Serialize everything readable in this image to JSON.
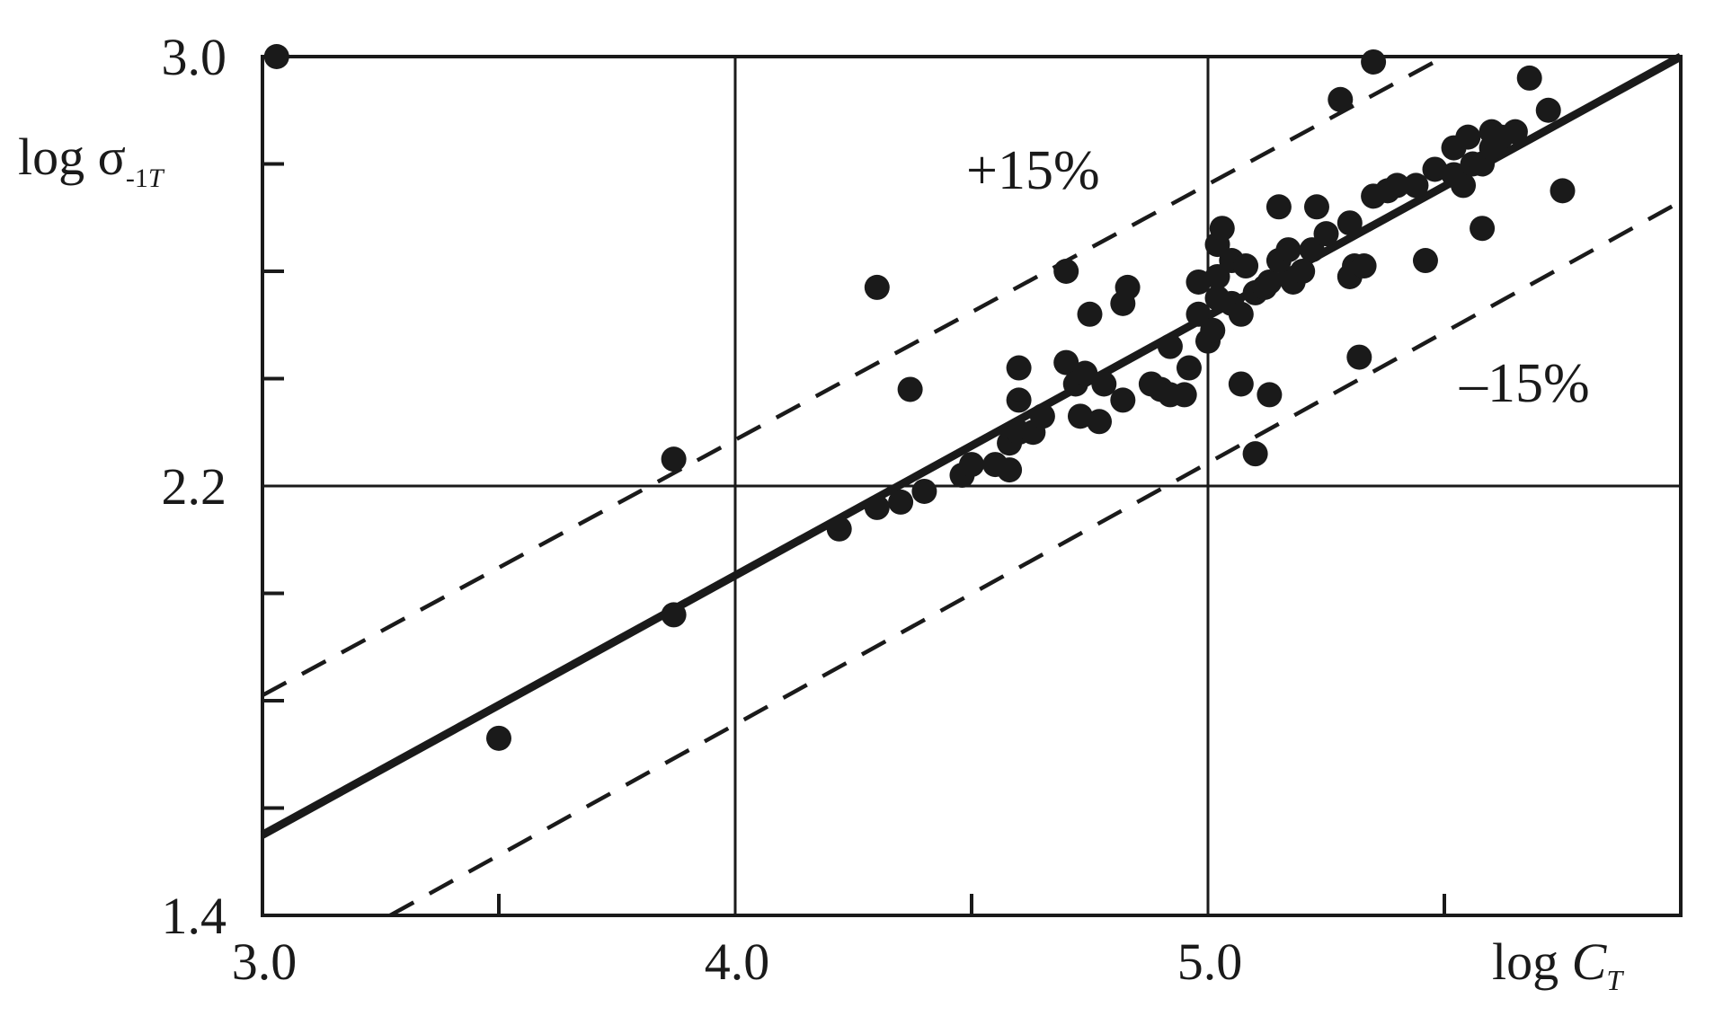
{
  "chart_data": {
    "type": "scatter",
    "title": "",
    "xlabel": {
      "main": "log ",
      "italic": "C",
      "sub": "T"
    },
    "ylabel": {
      "main": "log σ",
      "sub": "-1",
      "sub_italic": "T"
    },
    "xlim": [
      3.0,
      6.0
    ],
    "ylim": [
      1.4,
      3.0
    ],
    "x_tick_labels": [
      {
        "value": 3.0,
        "label": "3.0"
      },
      {
        "value": 4.0,
        "label": "4.0"
      },
      {
        "value": 5.0,
        "label": "5.0"
      }
    ],
    "y_tick_labels": [
      {
        "value": 1.4,
        "label": "1.4"
      },
      {
        "value": 2.2,
        "label": "2.2"
      },
      {
        "value": 3.0,
        "label": "3.0"
      }
    ],
    "x_minor_ticks": [
      3.5,
      4.5,
      5.5
    ],
    "y_minor_ticks": [
      1.6,
      1.8,
      2.0,
      2.4,
      2.6,
      2.8
    ],
    "grid_x": [
      4.0,
      5.0
    ],
    "grid_y": [
      2.2
    ],
    "grid": true,
    "fit_line": {
      "x": [
        3.0,
        6.0
      ],
      "y": [
        1.55,
        3.0
      ]
    },
    "band_upper": {
      "x": [
        3.0,
        5.5
      ],
      "y": [
        1.81,
        3.0
      ],
      "label": "+15%"
    },
    "band_lower": {
      "x": [
        3.27,
        6.0
      ],
      "y": [
        1.4,
        2.73
      ],
      "label": "–15%"
    },
    "points": [
      [
        3.03,
        3.0
      ],
      [
        3.5,
        1.73
      ],
      [
        3.87,
        1.96
      ],
      [
        3.87,
        2.25
      ],
      [
        4.22,
        2.12
      ],
      [
        4.3,
        2.16
      ],
      [
        4.3,
        2.57
      ],
      [
        4.35,
        2.17
      ],
      [
        4.37,
        2.38
      ],
      [
        4.4,
        2.19
      ],
      [
        4.48,
        2.22
      ],
      [
        4.5,
        2.24
      ],
      [
        4.55,
        2.24
      ],
      [
        4.58,
        2.23
      ],
      [
        4.58,
        2.28
      ],
      [
        4.6,
        2.3
      ],
      [
        4.6,
        2.36
      ],
      [
        4.6,
        2.42
      ],
      [
        4.63,
        2.3
      ],
      [
        4.65,
        2.33
      ],
      [
        4.7,
        2.43
      ],
      [
        4.7,
        2.6
      ],
      [
        4.72,
        2.39
      ],
      [
        4.73,
        2.33
      ],
      [
        4.74,
        2.41
      ],
      [
        4.75,
        2.52
      ],
      [
        4.77,
        2.32
      ],
      [
        4.78,
        2.39
      ],
      [
        4.82,
        2.36
      ],
      [
        4.82,
        2.54
      ],
      [
        4.83,
        2.57
      ],
      [
        4.88,
        2.39
      ],
      [
        4.9,
        2.38
      ],
      [
        4.92,
        2.37
      ],
      [
        4.92,
        2.46
      ],
      [
        4.95,
        2.37
      ],
      [
        4.96,
        2.42
      ],
      [
        4.98,
        2.52
      ],
      [
        4.98,
        2.58
      ],
      [
        5.0,
        2.47
      ],
      [
        5.01,
        2.49
      ],
      [
        5.02,
        2.55
      ],
      [
        5.02,
        2.59
      ],
      [
        5.02,
        2.65
      ],
      [
        5.03,
        2.68
      ],
      [
        5.05,
        2.54
      ],
      [
        5.05,
        2.62
      ],
      [
        5.07,
        2.52
      ],
      [
        5.07,
        2.39
      ],
      [
        5.08,
        2.61
      ],
      [
        5.1,
        2.56
      ],
      [
        5.1,
        2.26
      ],
      [
        5.12,
        2.57
      ],
      [
        5.13,
        2.58
      ],
      [
        5.13,
        2.37
      ],
      [
        5.15,
        2.62
      ],
      [
        5.15,
        2.72
      ],
      [
        5.17,
        2.64
      ],
      [
        5.18,
        2.58
      ],
      [
        5.2,
        2.6
      ],
      [
        5.22,
        2.64
      ],
      [
        5.23,
        2.72
      ],
      [
        5.25,
        2.67
      ],
      [
        5.28,
        2.92
      ],
      [
        5.3,
        2.69
      ],
      [
        5.3,
        2.59
      ],
      [
        5.31,
        2.61
      ],
      [
        5.32,
        2.44
      ],
      [
        5.33,
        2.61
      ],
      [
        5.35,
        2.99
      ],
      [
        5.35,
        2.74
      ],
      [
        5.38,
        2.75
      ],
      [
        5.4,
        2.76
      ],
      [
        5.44,
        2.76
      ],
      [
        5.46,
        2.62
      ],
      [
        5.48,
        2.79
      ],
      [
        5.52,
        2.78
      ],
      [
        5.52,
        2.83
      ],
      [
        5.54,
        2.76
      ],
      [
        5.55,
        2.85
      ],
      [
        5.56,
        2.8
      ],
      [
        5.58,
        2.8
      ],
      [
        5.58,
        2.68
      ],
      [
        5.6,
        2.83
      ],
      [
        5.6,
        2.86
      ],
      [
        5.62,
        2.85
      ],
      [
        5.65,
        2.86
      ],
      [
        5.68,
        2.96
      ],
      [
        5.72,
        2.9
      ],
      [
        5.75,
        2.75
      ]
    ]
  }
}
